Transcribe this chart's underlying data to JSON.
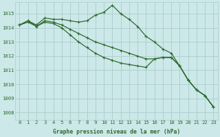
{
  "x": [
    0,
    1,
    2,
    3,
    4,
    5,
    6,
    7,
    8,
    9,
    10,
    11,
    12,
    13,
    14,
    15,
    16,
    17,
    18,
    19,
    20,
    21,
    22,
    23
  ],
  "line1": [
    1014.2,
    1014.5,
    1014.2,
    1014.7,
    1014.6,
    1014.6,
    1014.5,
    1014.4,
    1014.5,
    1014.9,
    1015.1,
    1015.6,
    1015.0,
    1014.6,
    1014.1,
    1013.4,
    1013.0,
    1012.5,
    1012.2,
    1011.3,
    1010.3,
    1009.6,
    1009.2,
    1008.4
  ],
  "line2": [
    1014.2,
    1014.5,
    1014.1,
    1014.5,
    1014.4,
    1014.2,
    1013.9,
    1013.6,
    1013.3,
    1013.0,
    1012.8,
    1012.6,
    1012.4,
    1012.2,
    1012.0,
    1011.8,
    1011.8,
    1011.9,
    1011.9,
    1011.3,
    1010.3,
    1009.6,
    1009.2,
    1008.4
  ],
  "line3": [
    1014.2,
    1014.4,
    1014.1,
    1014.4,
    1014.3,
    1014.0,
    1013.5,
    1013.0,
    1012.6,
    1012.2,
    1011.9,
    1011.7,
    1011.5,
    1011.4,
    1011.3,
    1011.2,
    1011.8,
    1011.9,
    1011.9,
    1011.3,
    1010.3,
    1009.6,
    1009.2,
    1008.4
  ],
  "line_color": "#2d6a2d",
  "bg_color": "#cce8e8",
  "grid_color": "#aacccc",
  "xlabel": "Graphe pression niveau de la mer (hPa)",
  "ylim_min": 1007.5,
  "ylim_max": 1015.8,
  "yticks": [
    1008,
    1009,
    1010,
    1011,
    1012,
    1013,
    1014,
    1015
  ],
  "tick_color": "#2d6a2d",
  "xlabel_color": "#2d6a2d",
  "marker": "+",
  "markersize": 3.5,
  "linewidth": 0.9,
  "tick_fontsize": 5.2,
  "xlabel_fontsize": 5.8
}
